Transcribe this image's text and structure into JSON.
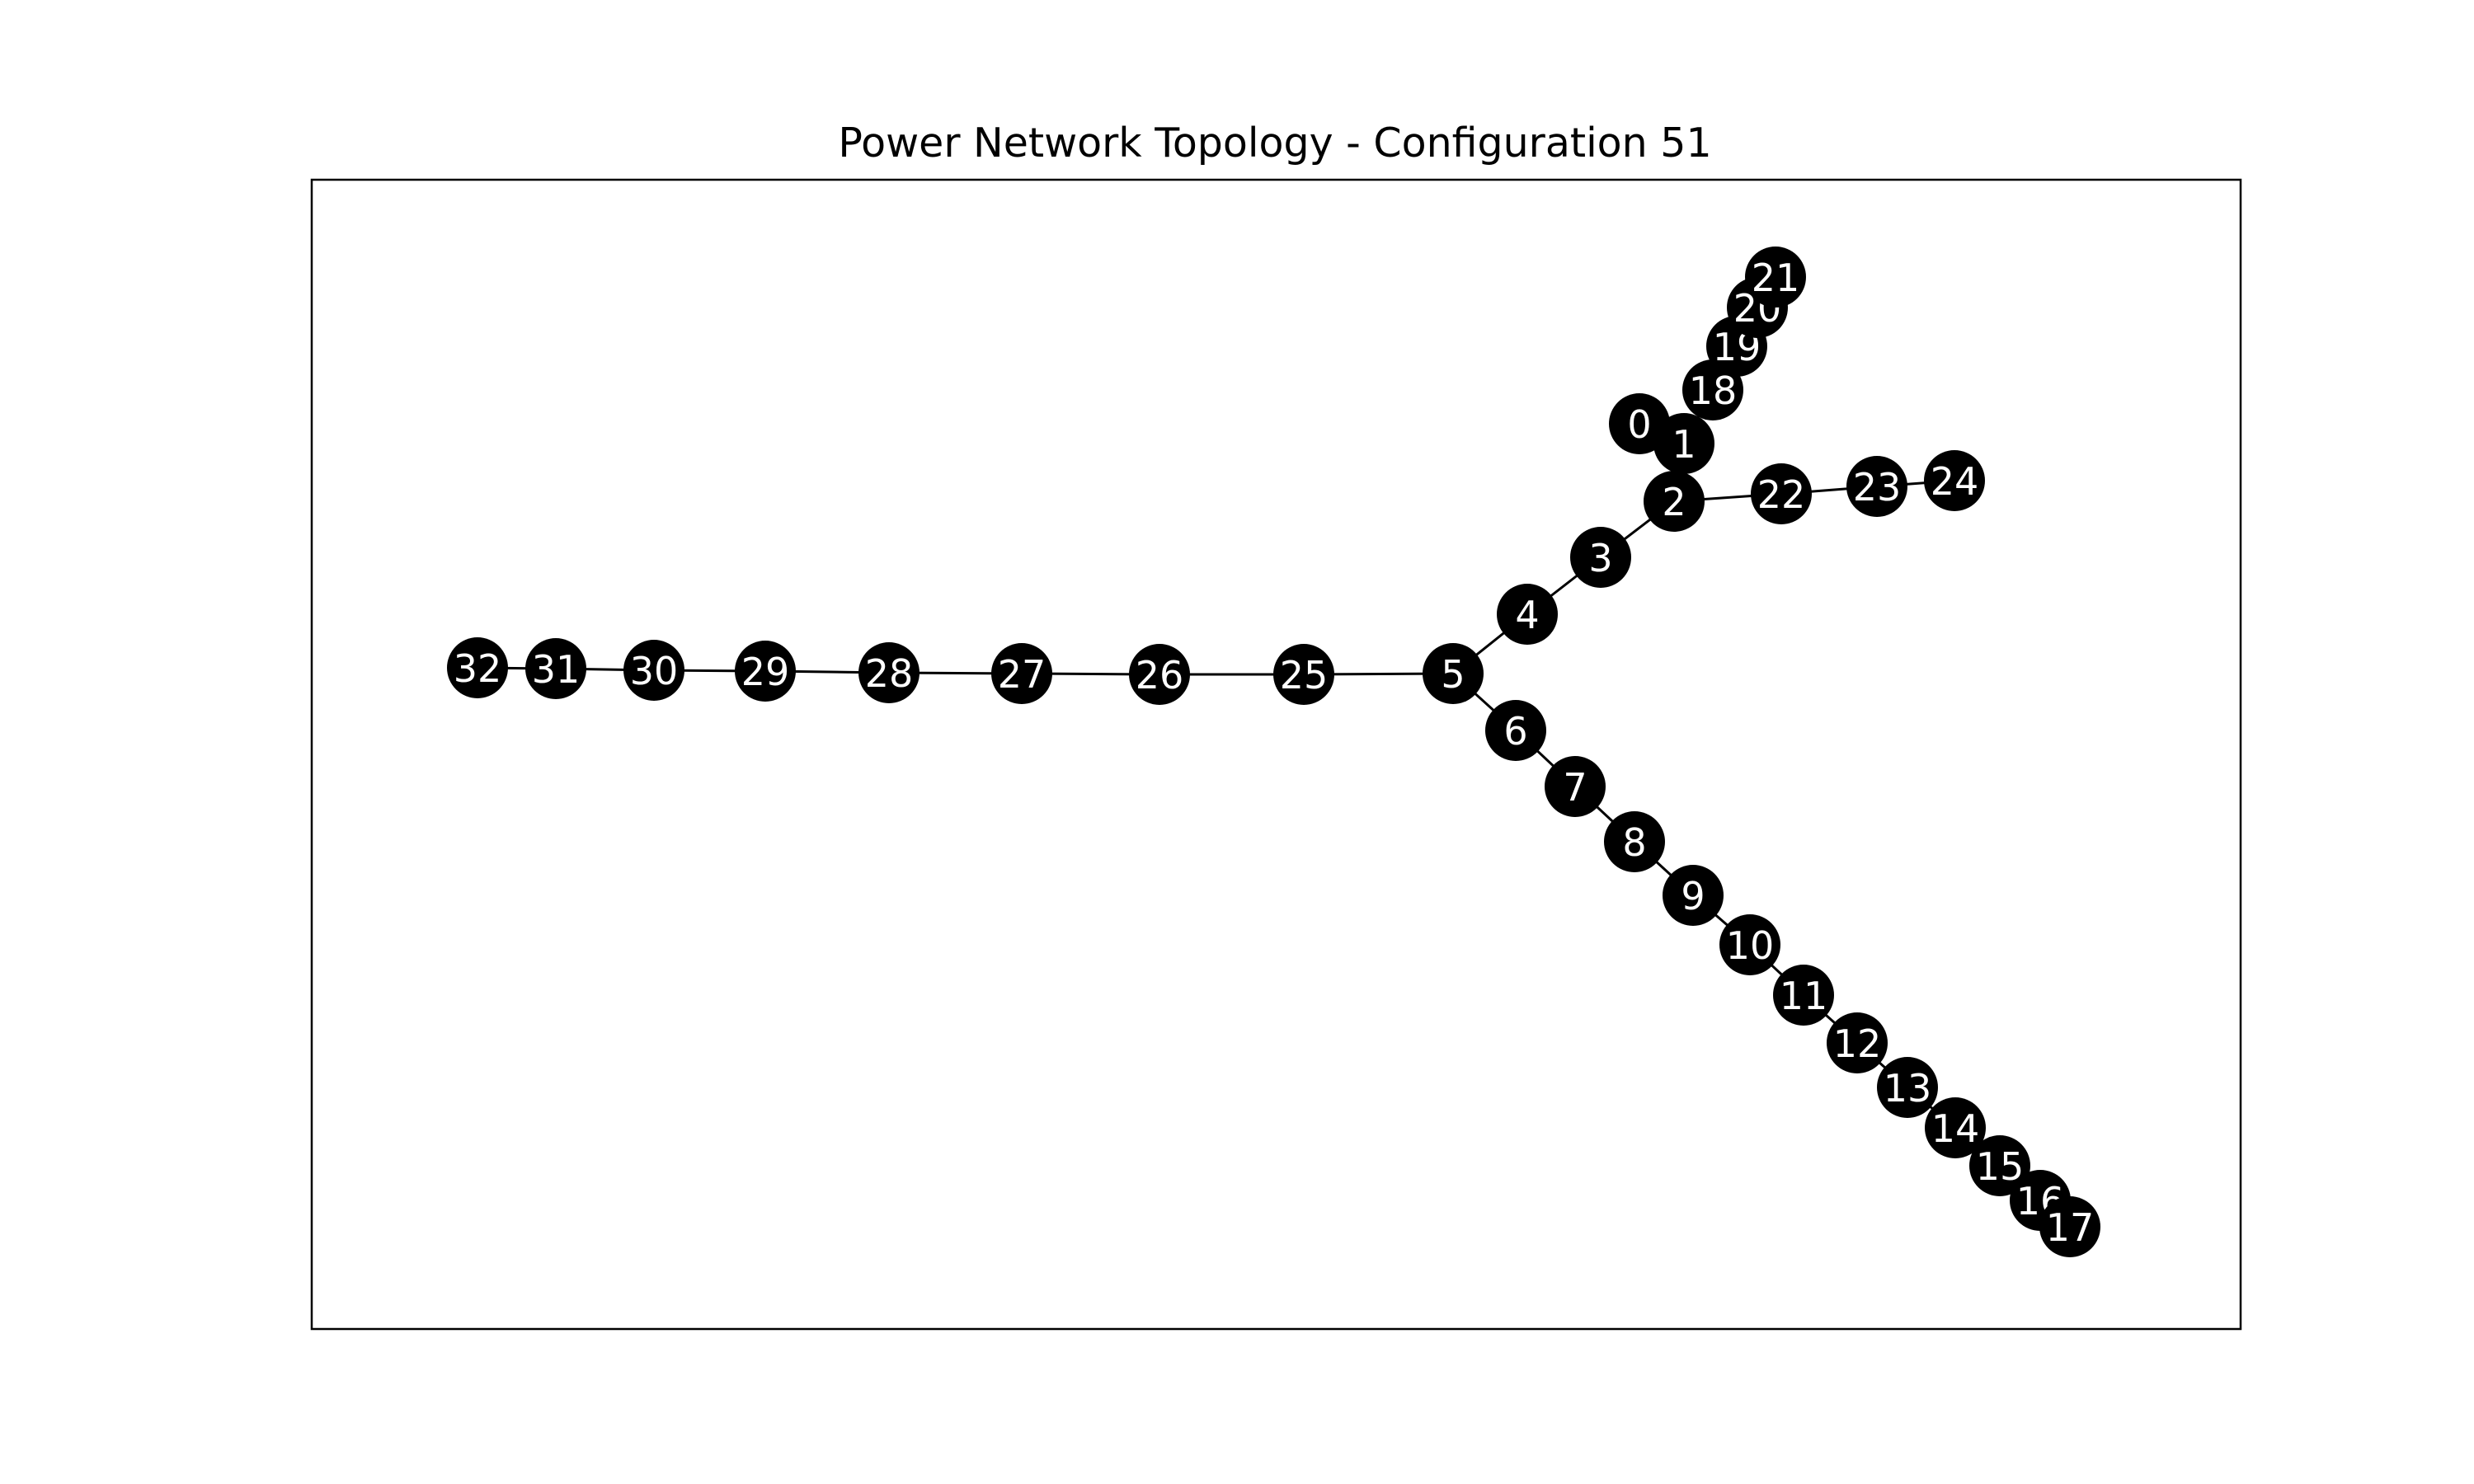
{
  "title": "Power Network Topology - Configuration 51",
  "colors": {
    "node_fill": "#000000",
    "node_label": "#ffffff",
    "edge": "#000000",
    "frame": "#000000",
    "background": "#ffffff"
  },
  "chart_data": {
    "type": "network",
    "title": "Power Network Topology - Configuration 51",
    "nodes": [
      "0",
      "1",
      "2",
      "3",
      "4",
      "5",
      "6",
      "7",
      "8",
      "9",
      "10",
      "11",
      "12",
      "13",
      "14",
      "15",
      "16",
      "17",
      "18",
      "19",
      "20",
      "21",
      "22",
      "23",
      "24",
      "25",
      "26",
      "27",
      "28",
      "29",
      "30",
      "31",
      "32"
    ],
    "edges": [
      [
        "0",
        "1"
      ],
      [
        "1",
        "2"
      ],
      [
        "2",
        "3"
      ],
      [
        "3",
        "4"
      ],
      [
        "4",
        "5"
      ],
      [
        "5",
        "6"
      ],
      [
        "6",
        "7"
      ],
      [
        "7",
        "8"
      ],
      [
        "8",
        "9"
      ],
      [
        "9",
        "10"
      ],
      [
        "10",
        "11"
      ],
      [
        "11",
        "12"
      ],
      [
        "12",
        "13"
      ],
      [
        "13",
        "14"
      ],
      [
        "14",
        "15"
      ],
      [
        "15",
        "16"
      ],
      [
        "16",
        "17"
      ],
      [
        "1",
        "18"
      ],
      [
        "18",
        "19"
      ],
      [
        "19",
        "20"
      ],
      [
        "20",
        "21"
      ],
      [
        "2",
        "22"
      ],
      [
        "22",
        "23"
      ],
      [
        "23",
        "24"
      ],
      [
        "5",
        "25"
      ],
      [
        "25",
        "26"
      ],
      [
        "26",
        "27"
      ],
      [
        "27",
        "28"
      ],
      [
        "28",
        "29"
      ],
      [
        "29",
        "30"
      ],
      [
        "30",
        "31"
      ],
      [
        "31",
        "32"
      ]
    ]
  }
}
